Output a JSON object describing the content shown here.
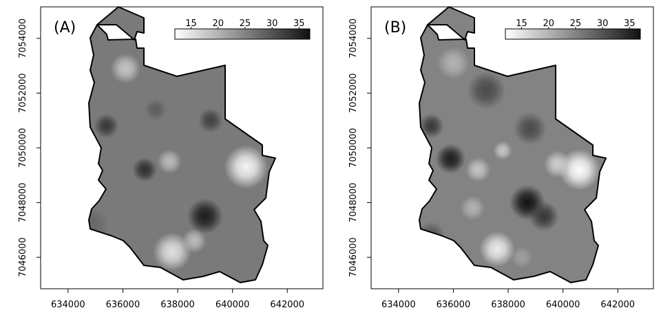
{
  "colors": {
    "background": "#ffffff",
    "frame": "#000000",
    "map_base": "#8c8c8c",
    "gray_low": "#ffffff",
    "gray_high": "#111111"
  },
  "chart_data": [
    {
      "type": "heatmap",
      "panel_label": "(A)",
      "title": "",
      "xlabel": "",
      "ylabel": "",
      "xlim": [
        633000,
        643300
      ],
      "ylim": [
        7044850,
        7055150
      ],
      "x_ticks": [
        634000,
        636000,
        638000,
        640000,
        642000
      ],
      "x_tick_labels": [
        "634000",
        "636000",
        "638000",
        "640000",
        "642000"
      ],
      "y_ticks": [
        7046000,
        7048000,
        7050000,
        7052000,
        7054000
      ],
      "y_tick_labels": [
        "7046000",
        "7048000",
        "7050000",
        "7052000",
        "7054000"
      ],
      "colorbar": {
        "ticks": [
          15,
          20,
          25,
          30,
          35
        ],
        "tick_labels": [
          "15",
          "20",
          "25",
          "30",
          "35"
        ],
        "range": [
          12,
          37
        ],
        "placement": "top-right"
      },
      "field": {
        "background_value": 26,
        "features": [
          {
            "x": 640500,
            "y": 7049300,
            "value": 13,
            "radius": 800
          },
          {
            "x": 637800,
            "y": 7046200,
            "value": 15,
            "radius": 700
          },
          {
            "x": 638600,
            "y": 7046600,
            "value": 19,
            "radius": 450
          },
          {
            "x": 636100,
            "y": 7052900,
            "value": 18,
            "radius": 550
          },
          {
            "x": 637700,
            "y": 7049500,
            "value": 19,
            "radius": 450
          },
          {
            "x": 636800,
            "y": 7049200,
            "value": 34,
            "radius": 450
          },
          {
            "x": 639000,
            "y": 7047500,
            "value": 36,
            "radius": 650
          },
          {
            "x": 635400,
            "y": 7050800,
            "value": 33,
            "radius": 450
          },
          {
            "x": 639200,
            "y": 7051000,
            "value": 32,
            "radius": 450
          },
          {
            "x": 637200,
            "y": 7051400,
            "value": 29,
            "radius": 400
          },
          {
            "x": 634900,
            "y": 7047200,
            "value": 28,
            "radius": 600
          }
        ]
      }
    },
    {
      "type": "heatmap",
      "panel_label": "(B)",
      "title": "",
      "xlabel": "",
      "ylabel": "",
      "xlim": [
        633000,
        643300
      ],
      "ylim": [
        7044850,
        7055150
      ],
      "x_ticks": [
        634000,
        636000,
        638000,
        640000,
        642000
      ],
      "x_tick_labels": [
        "634000",
        "636000",
        "638000",
        "640000",
        "642000"
      ],
      "y_ticks": [
        7046000,
        7048000,
        7050000,
        7052000,
        7054000
      ],
      "y_tick_labels": [
        "7046000",
        "7048000",
        "7050000",
        "7052000",
        "7054000"
      ],
      "colorbar": {
        "ticks": [
          15,
          20,
          25,
          30,
          35
        ],
        "tick_labels": [
          "15",
          "20",
          "25",
          "30",
          "35"
        ],
        "range": [
          12,
          37
        ],
        "placement": "top-right"
      },
      "field": {
        "background_value": 25,
        "features": [
          {
            "x": 640600,
            "y": 7049200,
            "value": 12,
            "radius": 750
          },
          {
            "x": 637600,
            "y": 7046300,
            "value": 14,
            "radius": 650
          },
          {
            "x": 638700,
            "y": 7048000,
            "value": 37,
            "radius": 650
          },
          {
            "x": 639300,
            "y": 7047500,
            "value": 33,
            "radius": 550
          },
          {
            "x": 635900,
            "y": 7049600,
            "value": 36,
            "radius": 550
          },
          {
            "x": 635200,
            "y": 7050800,
            "value": 33,
            "radius": 450
          },
          {
            "x": 637200,
            "y": 7052100,
            "value": 31,
            "radius": 700
          },
          {
            "x": 638800,
            "y": 7050700,
            "value": 31,
            "radius": 600
          },
          {
            "x": 636900,
            "y": 7049200,
            "value": 18,
            "radius": 450
          },
          {
            "x": 639800,
            "y": 7049400,
            "value": 17,
            "radius": 500
          },
          {
            "x": 636000,
            "y": 7053100,
            "value": 20,
            "radius": 600
          },
          {
            "x": 637800,
            "y": 7049900,
            "value": 18,
            "radius": 350
          },
          {
            "x": 636700,
            "y": 7047800,
            "value": 20,
            "radius": 450
          },
          {
            "x": 635200,
            "y": 7046800,
            "value": 30,
            "radius": 500
          },
          {
            "x": 638500,
            "y": 7046000,
            "value": 22,
            "radius": 400
          }
        ]
      }
    }
  ]
}
